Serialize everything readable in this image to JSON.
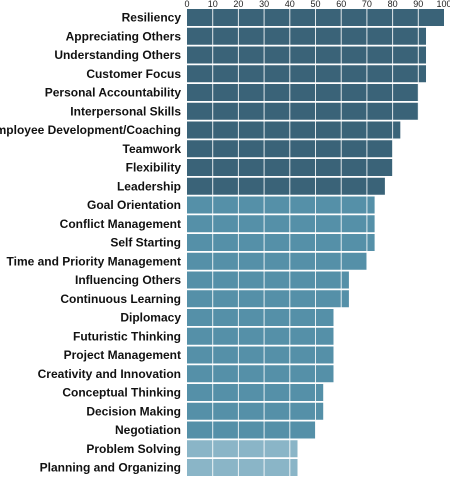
{
  "chart_data": {
    "type": "bar",
    "orientation": "horizontal",
    "title": "",
    "xlabel": "",
    "ylabel": "",
    "xlim": [
      0,
      100
    ],
    "ticks": [
      "0",
      "10",
      "20",
      "30",
      "40",
      "50",
      "60",
      "70",
      "80",
      "90",
      "100"
    ],
    "tick_values": [
      0,
      10,
      20,
      30,
      40,
      50,
      60,
      70,
      80,
      90,
      100
    ],
    "grid": true,
    "categories": [
      "Resiliency",
      "Appreciating Others",
      "Understanding Others",
      "Customer Focus",
      "Personal Accountability",
      "Interpersonal Skills",
      "Employee Development/Coaching",
      "Teamwork",
      "Flexibility",
      "Leadership",
      "Goal Orientation",
      "Conflict Management",
      "Self Starting",
      "Time and Priority Management",
      "Influencing Others",
      "Continuous Learning",
      "Diplomacy",
      "Futuristic Thinking",
      "Project Management",
      "Creativity and Innovation",
      "Conceptual Thinking",
      "Decision Making",
      "Negotiation",
      "Problem Solving",
      "Planning and Organizing"
    ],
    "values": [
      100,
      93,
      93,
      93,
      90,
      90,
      83,
      80,
      80,
      77,
      73,
      73,
      73,
      70,
      63,
      63,
      57,
      57,
      57,
      57,
      53,
      53,
      50,
      43,
      43
    ],
    "groups": [
      "top",
      "top",
      "top",
      "top",
      "top",
      "top",
      "top",
      "top",
      "top",
      "top",
      "mid",
      "mid",
      "mid",
      "mid",
      "mid",
      "mid",
      "mid",
      "mid",
      "mid",
      "mid",
      "mid",
      "mid",
      "mid",
      "low",
      "low"
    ],
    "colors": {
      "top": "#3a6378",
      "mid": "#5590a8",
      "low": "#8ab5c7"
    }
  }
}
